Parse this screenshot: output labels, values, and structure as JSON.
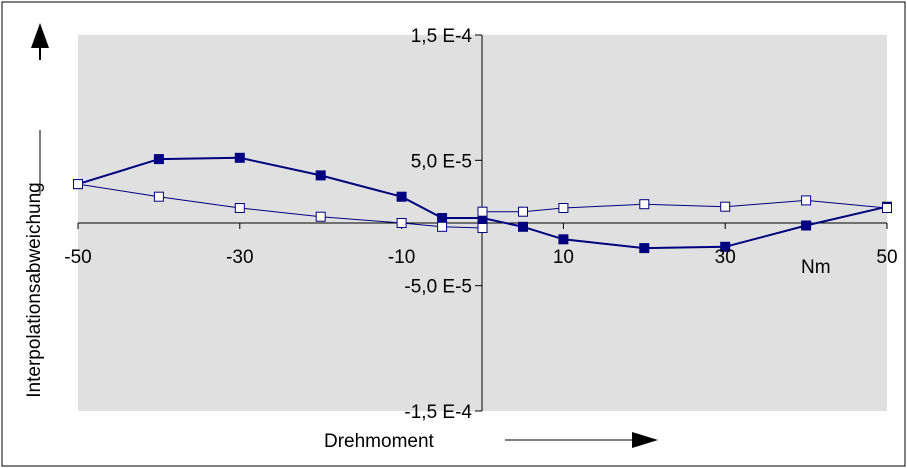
{
  "chart_data": {
    "type": "line",
    "title": "",
    "xlabel": "Drehmoment",
    "x_unit_label": "Nm",
    "ylabel": "Interpolationsabweichung",
    "xlim": [
      -50,
      50
    ],
    "ylim": [
      -0.00015,
      0.00015
    ],
    "x_ticks": [
      {
        "value": -50,
        "label": "-50"
      },
      {
        "value": -30,
        "label": "-30"
      },
      {
        "value": -10,
        "label": "-10"
      },
      {
        "value": 10,
        "label": "10"
      },
      {
        "value": 30,
        "label": "30"
      },
      {
        "value": 50,
        "label": "50"
      }
    ],
    "y_ticks": [
      {
        "value": 0.00015,
        "label": "1,5 E-4"
      },
      {
        "value": 5e-05,
        "label": "5,0 E-5"
      },
      {
        "value": -5e-05,
        "label": "-5,0 E-5"
      },
      {
        "value": -0.00015,
        "label": "-1,5 E-4"
      }
    ],
    "grid": false,
    "plot_background": "#e0e0e0",
    "series": [
      {
        "marker": "filled-square",
        "color": "#000080",
        "points": [
          [
            -50,
            3.1e-05
          ],
          [
            -40,
            5.1e-05
          ],
          [
            -30,
            5.2e-05
          ],
          [
            -20,
            3.8e-05
          ],
          [
            -10,
            2.1e-05
          ],
          [
            -5,
            4e-06
          ],
          [
            0,
            4e-06
          ],
          [
            5,
            -3e-06
          ],
          [
            10,
            -1.3e-05
          ],
          [
            20,
            -2e-05
          ],
          [
            30,
            -1.9e-05
          ],
          [
            40,
            -2e-06
          ],
          [
            50,
            1.3e-05
          ]
        ]
      },
      {
        "marker": "hollow-square",
        "color": "#000080",
        "points": [
          [
            -50,
            3.1e-05
          ],
          [
            -40,
            2.1e-05
          ],
          [
            -30,
            1.2e-05
          ],
          [
            -20,
            5e-06
          ],
          [
            -10,
            0.0
          ],
          [
            -5,
            -3e-06
          ],
          [
            0,
            -4e-06
          ],
          [
            0,
            9e-06
          ],
          [
            5,
            9e-06
          ],
          [
            10,
            1.2e-05
          ],
          [
            20,
            1.5e-05
          ],
          [
            30,
            1.3e-05
          ],
          [
            40,
            1.8e-05
          ],
          [
            50,
            1.2e-05
          ]
        ]
      }
    ]
  }
}
